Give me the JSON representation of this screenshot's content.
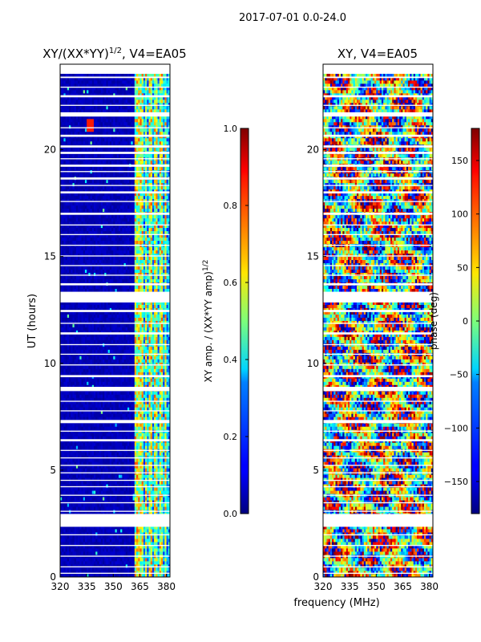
{
  "figure": {
    "suptitle": "2017-07-01 0.0-24.0",
    "shared_xlabel": "frequency (MHz)"
  },
  "chart_data": [
    {
      "type": "heatmap",
      "title": "XY/(XX*YY)^1/2, V4=EA05",
      "title_base": "XY/(XX*YY)",
      "title_exp": "1/2",
      "title_tail": ", V4=EA05",
      "ylabel": "UT (hours)",
      "xlim": [
        320,
        382
      ],
      "ylim": [
        0,
        24
      ],
      "xticks": [
        320,
        335,
        350,
        365,
        380
      ],
      "yticks": [
        0,
        5,
        10,
        15,
        20
      ],
      "colorscale": "jet",
      "low_signal_freq_range": [
        320,
        362
      ],
      "active_freq_range": [
        362,
        382
      ],
      "active_columns_mhz": [
        362.5,
        364,
        366,
        368.5,
        371,
        374,
        377,
        379.5
      ],
      "highlight_events": [
        {
          "freq": 337,
          "time": 21.2,
          "level": 0.85
        }
      ],
      "colorbar": {
        "label_base": "XY amp. / (XX*YY amp)",
        "label_exp": "1/2",
        "range": [
          0.0,
          1.0
        ],
        "ticks": [
          "0.0",
          "0.2",
          "0.4",
          "0.6",
          "0.8",
          "1.0"
        ]
      }
    },
    {
      "type": "heatmap",
      "title": "XY, V4=EA05",
      "ylabel": "",
      "xlim": [
        320,
        382
      ],
      "ylim": [
        0,
        24
      ],
      "xticks": [
        320,
        335,
        350,
        365,
        380
      ],
      "yticks": [
        0,
        5,
        10,
        15,
        20
      ],
      "colorscale": "jet",
      "colorbar": {
        "label": "phase (deg)",
        "range": [
          -180,
          180
        ],
        "ticks": [
          "−150",
          "−100",
          "−50",
          "0",
          "50",
          "100",
          "150"
        ]
      }
    }
  ],
  "flagged_time_gaps_hours": [
    [
      23.35,
      23.42
    ],
    [
      22.9,
      22.95
    ],
    [
      22.45,
      22.55
    ],
    [
      22.05,
      22.1
    ],
    [
      21.55,
      21.75
    ],
    [
      21.0,
      21.05
    ],
    [
      20.6,
      20.7
    ],
    [
      20.1,
      20.2
    ],
    [
      19.8,
      19.9
    ],
    [
      19.55,
      19.6
    ],
    [
      19.2,
      19.3
    ],
    [
      18.95,
      19.0
    ],
    [
      18.6,
      18.7
    ],
    [
      18.3,
      18.35
    ],
    [
      17.95,
      18.05
    ],
    [
      17.55,
      17.6
    ],
    [
      16.95,
      17.05
    ],
    [
      16.45,
      16.5
    ],
    [
      16.0,
      16.05
    ],
    [
      15.5,
      15.55
    ],
    [
      15.0,
      15.05
    ],
    [
      14.55,
      14.6
    ],
    [
      14.1,
      14.15
    ],
    [
      13.65,
      13.75
    ],
    [
      12.85,
      13.35
    ],
    [
      12.4,
      12.5
    ],
    [
      11.85,
      11.9
    ],
    [
      11.35,
      11.45
    ],
    [
      10.85,
      10.9
    ],
    [
      10.4,
      10.45
    ],
    [
      9.9,
      9.95
    ],
    [
      9.35,
      9.45
    ],
    [
      8.7,
      8.9
    ],
    [
      8.2,
      8.25
    ],
    [
      7.75,
      7.8
    ],
    [
      7.2,
      7.35
    ],
    [
      6.8,
      6.85
    ],
    [
      6.35,
      6.45
    ],
    [
      5.9,
      5.95
    ],
    [
      5.55,
      5.6
    ],
    [
      5.2,
      5.25
    ],
    [
      4.85,
      4.9
    ],
    [
      4.5,
      4.55
    ],
    [
      4.2,
      4.25
    ],
    [
      3.8,
      3.85
    ],
    [
      3.45,
      3.5
    ],
    [
      3.05,
      3.1
    ],
    [
      2.35,
      2.95
    ],
    [
      1.95,
      2.0
    ],
    [
      1.45,
      1.5
    ],
    [
      0.95,
      1.0
    ],
    [
      0.45,
      0.5
    ],
    [
      0.15,
      0.2
    ]
  ]
}
